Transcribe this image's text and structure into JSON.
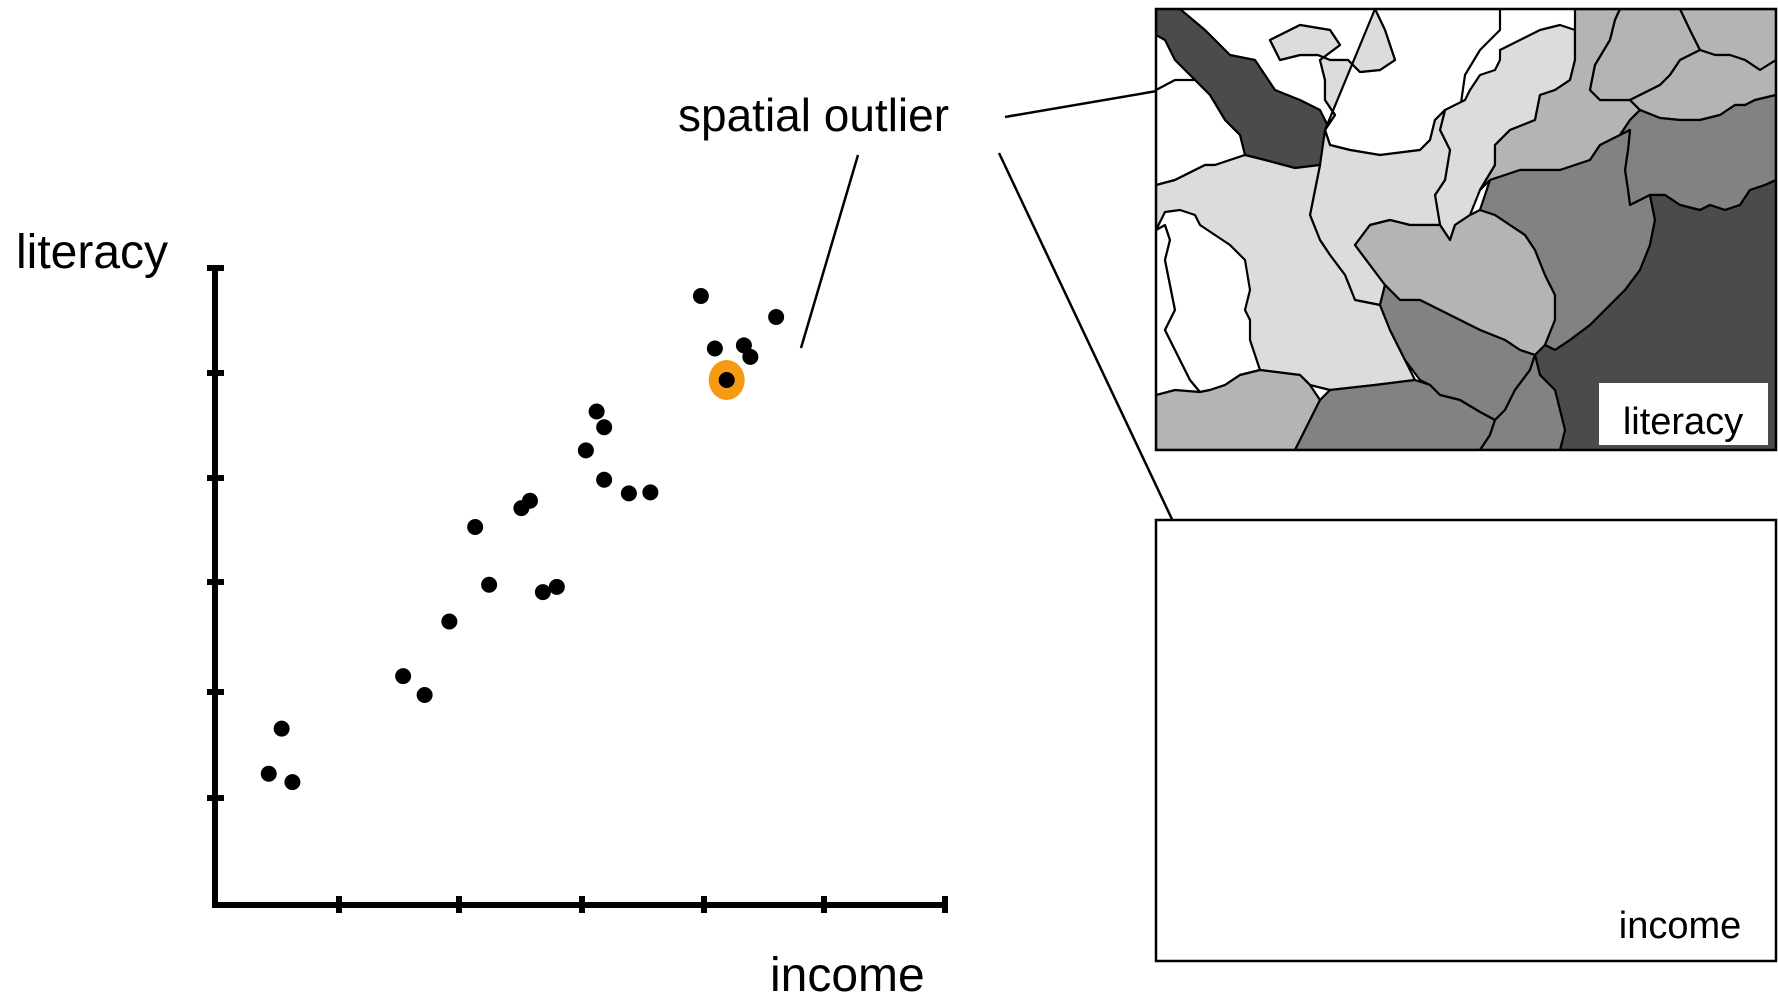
{
  "scatter": {
    "y_label": "literacy",
    "x_label": "income",
    "points": [
      {
        "x": 0.5,
        "y": 1.25
      },
      {
        "x": 0.62,
        "y": 1.68
      },
      {
        "x": 0.72,
        "y": 1.17
      },
      {
        "x": 1.75,
        "y": 2.18
      },
      {
        "x": 1.95,
        "y": 2.0
      },
      {
        "x": 2.18,
        "y": 2.7
      },
      {
        "x": 2.42,
        "y": 3.6
      },
      {
        "x": 2.55,
        "y": 3.05
      },
      {
        "x": 2.85,
        "y": 3.78
      },
      {
        "x": 2.93,
        "y": 3.85
      },
      {
        "x": 3.05,
        "y": 2.98
      },
      {
        "x": 3.18,
        "y": 3.03
      },
      {
        "x": 3.45,
        "y": 4.33
      },
      {
        "x": 3.55,
        "y": 4.7
      },
      {
        "x": 3.62,
        "y": 4.55
      },
      {
        "x": 3.62,
        "y": 4.05
      },
      {
        "x": 3.85,
        "y": 3.92
      },
      {
        "x": 4.05,
        "y": 3.93
      },
      {
        "x": 4.52,
        "y": 5.8
      },
      {
        "x": 4.65,
        "y": 5.3
      },
      {
        "x": 4.92,
        "y": 5.33
      },
      {
        "x": 4.98,
        "y": 5.22
      },
      {
        "x": 5.22,
        "y": 5.6
      },
      {
        "x": 4.76,
        "y": 5.0,
        "outlier": true
      }
    ]
  },
  "annotation": "spatial outlier",
  "maps": [
    {
      "label": "literacy"
    },
    {
      "label": "income"
    }
  ],
  "colors": {
    "point": "#000000",
    "outlier_ring": "#f59a12",
    "shade_white": "#ffffff",
    "shade_light": "#dcdcdc",
    "shade_mid": "#b4b4b4",
    "shade_dark": "#828282",
    "shade_darkest": "#4b4b4b"
  }
}
